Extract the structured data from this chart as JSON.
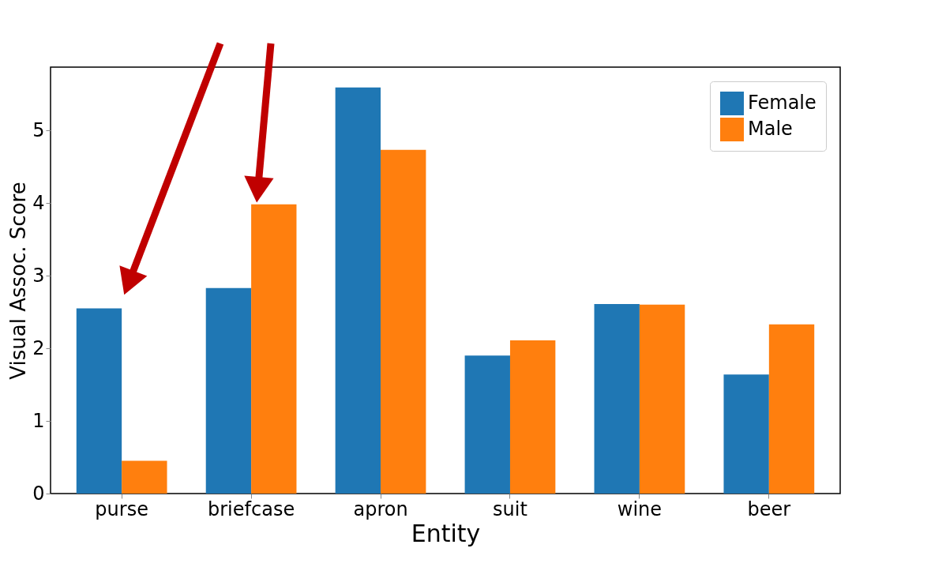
{
  "chart_data": {
    "type": "bar",
    "xlabel": "Entity",
    "ylabel": "Visual Assoc. Score",
    "categories": [
      "purse",
      "briefcase",
      "apron",
      "suit",
      "wine",
      "beer"
    ],
    "series": [
      {
        "name": "Female",
        "color": "#1f77b4",
        "values": [
          2.55,
          2.83,
          5.59,
          1.9,
          2.61,
          1.64
        ]
      },
      {
        "name": "Male",
        "color": "#ff7f0e",
        "values": [
          0.45,
          3.98,
          4.73,
          2.11,
          2.6,
          2.33
        ]
      }
    ],
    "ylim": [
      0,
      5.87
    ],
    "yticks": [
      0,
      1,
      2,
      3,
      4,
      5
    ],
    "grid": false,
    "legend": "top right"
  }
}
